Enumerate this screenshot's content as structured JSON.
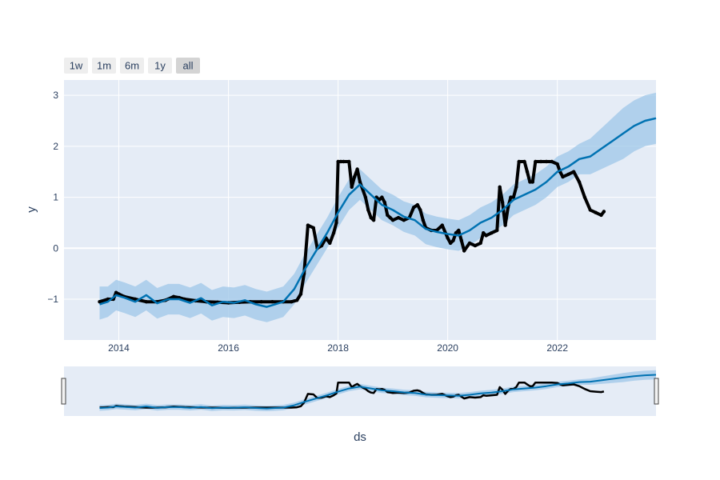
{
  "range_selector": {
    "buttons": [
      {
        "label": "1w",
        "active": false
      },
      {
        "label": "1m",
        "active": false
      },
      {
        "label": "6m",
        "active": false
      },
      {
        "label": "1y",
        "active": false
      },
      {
        "label": "all",
        "active": true
      }
    ]
  },
  "colors": {
    "plot_bg": "#e5ecf6",
    "grid": "#ffffff",
    "actual": "#000000",
    "forecast": "#0072b2",
    "interval": "#9ec7e8",
    "axis_text": "#2a3f5f"
  },
  "chart_data": {
    "type": "line",
    "xlabel": "ds",
    "ylabel": "y",
    "xlim": [
      2013.0,
      2023.8
    ],
    "ylim": [
      -1.8,
      3.3
    ],
    "x_ticks": [
      {
        "value": 2014,
        "label": "2014"
      },
      {
        "value": 2016,
        "label": "2016"
      },
      {
        "value": 2018,
        "label": "2018"
      },
      {
        "value": 2020,
        "label": "2020"
      },
      {
        "value": 2022,
        "label": "2022"
      }
    ],
    "y_ticks": [
      {
        "value": -1,
        "label": "−1"
      },
      {
        "value": 0,
        "label": "0"
      },
      {
        "value": 1,
        "label": "1"
      },
      {
        "value": 2,
        "label": "2"
      },
      {
        "value": 3,
        "label": "3"
      }
    ],
    "grid": true,
    "legend": "none",
    "range_slider": true,
    "series": [
      {
        "role": "actual",
        "style": "markers",
        "x": [
          2013.65,
          2013.8,
          2013.9,
          2013.95,
          2014.0,
          2014.1,
          2014.3,
          2014.5,
          2014.7,
          2014.85,
          2015.0,
          2015.1,
          2015.2,
          2015.4,
          2015.6,
          2015.8,
          2016.0,
          2016.2,
          2016.4,
          2016.6,
          2016.8,
          2017.0,
          2017.15,
          2017.25,
          2017.32,
          2017.38,
          2017.45,
          2017.55,
          2017.62,
          2017.7,
          2017.78,
          2017.85,
          2017.92,
          2017.97,
          2018.0,
          2018.05,
          2018.1,
          2018.2,
          2018.25,
          2018.3,
          2018.35,
          2018.4,
          2018.5,
          2018.55,
          2018.6,
          2018.65,
          2018.7,
          2018.75,
          2018.8,
          2018.85,
          2018.9,
          2018.95,
          2019.0,
          2019.1,
          2019.2,
          2019.3,
          2019.38,
          2019.45,
          2019.5,
          2019.55,
          2019.6,
          2019.7,
          2019.8,
          2019.9,
          2020.0,
          2020.05,
          2020.1,
          2020.15,
          2020.2,
          2020.25,
          2020.3,
          2020.4,
          2020.5,
          2020.6,
          2020.65,
          2020.7,
          2020.8,
          2020.9,
          2020.95,
          2021.0,
          2021.05,
          2021.1,
          2021.15,
          2021.2,
          2021.25,
          2021.3,
          2021.4,
          2021.45,
          2021.5,
          2021.55,
          2021.6,
          2021.7,
          2021.8,
          2021.9,
          2022.0,
          2022.05,
          2022.1,
          2022.2,
          2022.3,
          2022.4,
          2022.5,
          2022.6,
          2022.7,
          2022.8,
          2022.85
        ],
        "y": [
          -1.05,
          -1.0,
          -1.0,
          -0.87,
          -0.9,
          -0.95,
          -1.0,
          -1.05,
          -1.05,
          -1.02,
          -0.95,
          -0.97,
          -1.0,
          -1.03,
          -1.05,
          -1.06,
          -1.07,
          -1.06,
          -1.05,
          -1.05,
          -1.05,
          -1.05,
          -1.05,
          -1.02,
          -0.9,
          -0.5,
          0.45,
          0.4,
          0.0,
          0.05,
          0.2,
          0.1,
          0.3,
          0.5,
          1.7,
          1.7,
          1.7,
          1.7,
          1.2,
          1.4,
          1.55,
          1.3,
          1.0,
          0.75,
          0.6,
          0.55,
          1.0,
          0.95,
          1.0,
          0.9,
          0.65,
          0.6,
          0.55,
          0.6,
          0.55,
          0.6,
          0.8,
          0.85,
          0.75,
          0.55,
          0.4,
          0.35,
          0.35,
          0.45,
          0.2,
          0.1,
          0.15,
          0.3,
          0.35,
          0.15,
          -0.05,
          0.1,
          0.05,
          0.1,
          0.3,
          0.25,
          0.3,
          0.35,
          1.2,
          0.9,
          0.45,
          0.8,
          1.0,
          1.0,
          1.2,
          1.7,
          1.7,
          1.5,
          1.3,
          1.3,
          1.7,
          1.7,
          1.7,
          1.7,
          1.65,
          1.5,
          1.4,
          1.45,
          1.5,
          1.3,
          1.0,
          0.75,
          0.7,
          0.65,
          0.72
        ]
      },
      {
        "role": "forecast",
        "style": "line",
        "x": [
          2013.65,
          2013.8,
          2013.95,
          2014.1,
          2014.3,
          2014.5,
          2014.7,
          2014.9,
          2015.1,
          2015.3,
          2015.5,
          2015.7,
          2015.9,
          2016.1,
          2016.3,
          2016.5,
          2016.7,
          2016.85,
          2017.0,
          2017.2,
          2017.4,
          2017.6,
          2017.8,
          2018.0,
          2018.2,
          2018.4,
          2018.6,
          2018.8,
          2019.0,
          2019.2,
          2019.4,
          2019.6,
          2019.8,
          2020.0,
          2020.2,
          2020.4,
          2020.6,
          2020.8,
          2021.0,
          2021.2,
          2021.4,
          2021.6,
          2021.8,
          2022.0,
          2022.2,
          2022.4,
          2022.6,
          2022.8,
          2023.0,
          2023.2,
          2023.4,
          2023.6,
          2023.8
        ],
        "y": [
          -1.1,
          -1.05,
          -0.92,
          -0.97,
          -1.05,
          -0.92,
          -1.08,
          -1.0,
          -1.0,
          -1.07,
          -0.98,
          -1.12,
          -1.05,
          -1.07,
          -1.02,
          -1.1,
          -1.15,
          -1.1,
          -1.05,
          -0.8,
          -0.4,
          -0.05,
          0.3,
          0.7,
          1.05,
          1.25,
          1.05,
          0.85,
          0.75,
          0.62,
          0.55,
          0.38,
          0.32,
          0.28,
          0.25,
          0.35,
          0.5,
          0.6,
          0.75,
          0.95,
          1.05,
          1.15,
          1.3,
          1.5,
          1.6,
          1.75,
          1.8,
          1.95,
          2.1,
          2.25,
          2.4,
          2.5,
          2.55
        ]
      }
    ],
    "interval": {
      "x": [
        2013.65,
        2013.8,
        2013.95,
        2014.1,
        2014.3,
        2014.5,
        2014.7,
        2014.9,
        2015.1,
        2015.3,
        2015.5,
        2015.7,
        2015.9,
        2016.1,
        2016.3,
        2016.5,
        2016.7,
        2016.85,
        2017.0,
        2017.2,
        2017.4,
        2017.6,
        2017.8,
        2018.0,
        2018.2,
        2018.4,
        2018.6,
        2018.8,
        2019.0,
        2019.2,
        2019.4,
        2019.6,
        2019.8,
        2020.0,
        2020.2,
        2020.4,
        2020.6,
        2020.8,
        2021.0,
        2021.2,
        2021.4,
        2021.6,
        2021.8,
        2022.0,
        2022.2,
        2022.4,
        2022.6,
        2022.8,
        2023.0,
        2023.2,
        2023.4,
        2023.6,
        2023.8
      ],
      "upper": [
        -0.75,
        -0.75,
        -0.62,
        -0.67,
        -0.75,
        -0.62,
        -0.78,
        -0.7,
        -0.7,
        -0.77,
        -0.68,
        -0.82,
        -0.75,
        -0.77,
        -0.72,
        -0.8,
        -0.85,
        -0.8,
        -0.75,
        -0.5,
        -0.1,
        0.25,
        0.6,
        1.0,
        1.35,
        1.55,
        1.35,
        1.15,
        1.05,
        0.92,
        0.85,
        0.68,
        0.62,
        0.58,
        0.55,
        0.65,
        0.8,
        0.9,
        1.05,
        1.25,
        1.35,
        1.45,
        1.6,
        1.8,
        1.9,
        2.05,
        2.15,
        2.35,
        2.55,
        2.75,
        2.9,
        3.0,
        3.05
      ],
      "lower": [
        -1.4,
        -1.35,
        -1.22,
        -1.27,
        -1.35,
        -1.22,
        -1.38,
        -1.3,
        -1.3,
        -1.37,
        -1.28,
        -1.42,
        -1.35,
        -1.37,
        -1.32,
        -1.4,
        -1.45,
        -1.4,
        -1.35,
        -1.1,
        -0.7,
        -0.35,
        0.0,
        0.4,
        0.75,
        0.95,
        0.75,
        0.55,
        0.45,
        0.32,
        0.25,
        0.08,
        0.02,
        -0.02,
        -0.05,
        0.05,
        0.2,
        0.3,
        0.45,
        0.65,
        0.75,
        0.85,
        1.0,
        1.2,
        1.3,
        1.45,
        1.45,
        1.55,
        1.65,
        1.75,
        1.9,
        2.0,
        2.05
      ]
    }
  }
}
